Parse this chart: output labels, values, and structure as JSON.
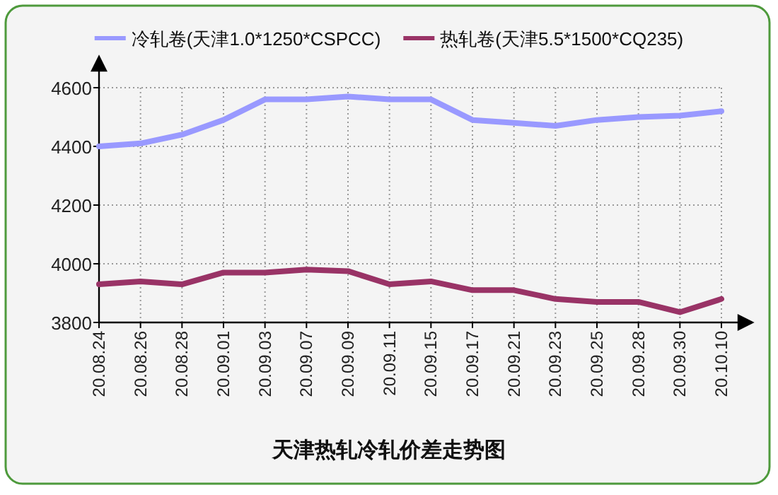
{
  "chart_data": {
    "type": "line",
    "title": "天津热轧冷轧价差走势图",
    "categories": [
      "20.08.24",
      "20.08.26",
      "20.08.28",
      "20.09.01",
      "20.09.03",
      "20.09.07",
      "20.09.09",
      "20.09.11",
      "20.09.15",
      "20.09.17",
      "20.09.21",
      "20.09.23",
      "20.09.25",
      "20.09.28",
      "20.09.30",
      "20.10.10"
    ],
    "series": [
      {
        "name": "冷轧卷(天津1.0*1250*CSPCC)",
        "color": "#9999ff",
        "values": [
          4400,
          4410,
          4440,
          4490,
          4560,
          4560,
          4570,
          4560,
          4560,
          4490,
          4480,
          4470,
          4490,
          4500,
          4505,
          4520
        ]
      },
      {
        "name": "热轧卷(天津5.5*1500*CQ235)",
        "color": "#993366",
        "values": [
          3930,
          3940,
          3930,
          3970,
          3970,
          3980,
          3975,
          3930,
          3940,
          3910,
          3910,
          3880,
          3870,
          3870,
          3835,
          3880
        ]
      }
    ],
    "ylim": [
      3800,
      4600
    ],
    "yticks": [
      3800,
      4000,
      4200,
      4400,
      4600
    ],
    "grid": true,
    "legend": "top",
    "marker": "none",
    "line_style": "solid"
  }
}
